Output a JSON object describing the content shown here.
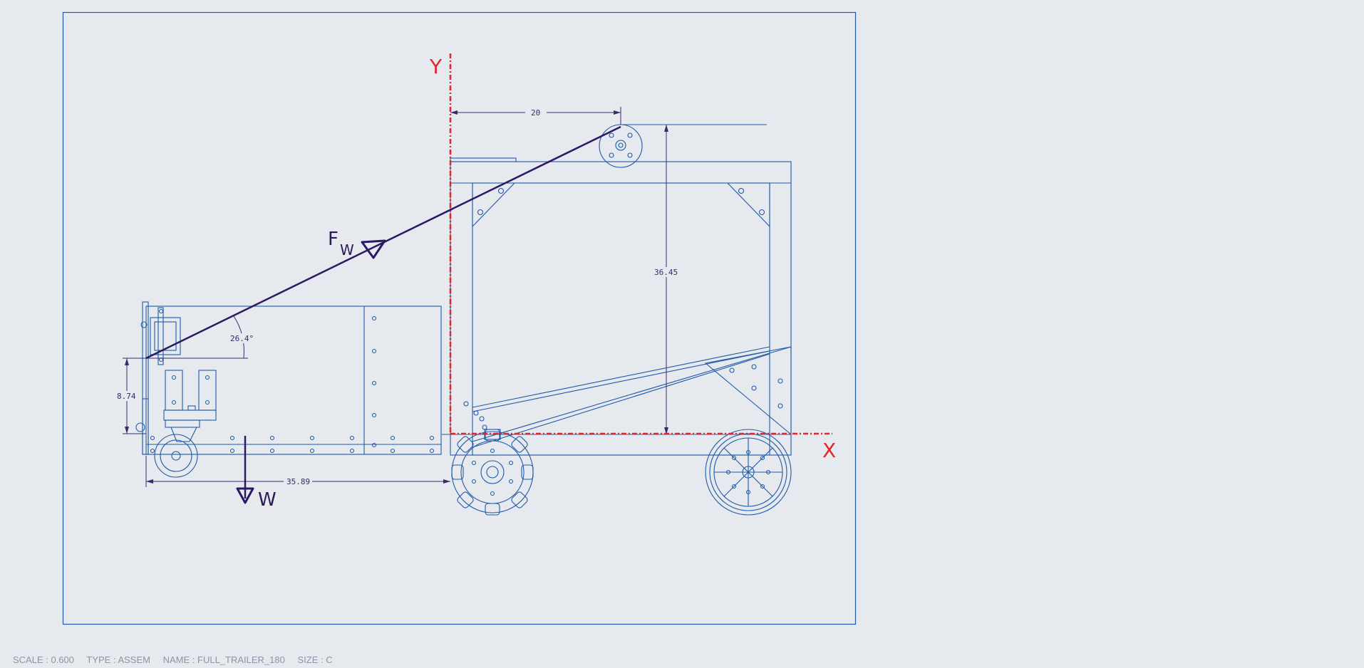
{
  "colors": {
    "background": "#e6e9ee",
    "linework": "#1f5aa8",
    "force": "#2b1a63",
    "dimension": "#3a2a6a",
    "axis": "#e0262a",
    "status_text": "#8b95a6"
  },
  "axes": {
    "y_label": "Y",
    "x_label": "X"
  },
  "forces": {
    "fw_main": "F",
    "fw_sub": "W",
    "weight": "W"
  },
  "dimensions": {
    "horizontal_top": "20",
    "vertical_height": "36.45",
    "angle": "26.4°",
    "left_height": "8.74",
    "bottom_length": "35.89"
  },
  "status": {
    "scale": "SCALE : 0.600",
    "type": "TYPE : ASSEM",
    "name": "NAME : FULL_TRAILER_180",
    "size": "SIZE : C"
  }
}
